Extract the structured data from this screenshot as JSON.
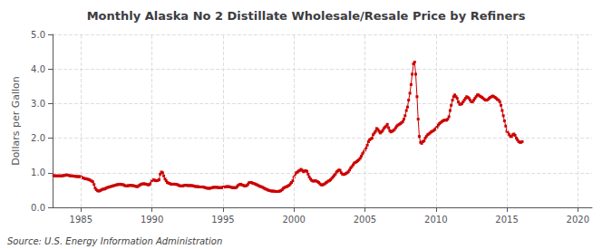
{
  "chart_data": {
    "type": "line",
    "title": "Monthly Alaska No 2 Distillate Wholesale/Resale Price by Refiners",
    "ylabel": "Dollars per Gallon",
    "annotation": "Source: U.S. Energy Information Administration",
    "color": "#cc0000",
    "marker": "square",
    "grid": true,
    "xlim": [
      1983,
      2021
    ],
    "ylim": [
      0.0,
      5.0
    ],
    "xticks": [
      1985,
      1990,
      1995,
      2000,
      2005,
      2010,
      2015,
      2020
    ],
    "yticks": [
      {
        "value": 0.0,
        "label": "0.0"
      },
      {
        "value": 1.0,
        "label": "1.0"
      },
      {
        "value": 2.0,
        "label": "2.0"
      },
      {
        "value": 3.0,
        "label": "3.0"
      },
      {
        "value": 4.0,
        "label": "4.0"
      },
      {
        "value": 5.0,
        "label": "5.0"
      }
    ],
    "x": [
      1983.08,
      1983.17,
      1983.25,
      1983.33,
      1983.42,
      1983.5,
      1983.58,
      1983.67,
      1983.75,
      1983.83,
      1983.92,
      1984.0,
      1984.08,
      1984.17,
      1984.25,
      1984.33,
      1984.42,
      1984.5,
      1984.58,
      1984.67,
      1984.75,
      1984.83,
      1984.92,
      1985.0,
      1985.08,
      1985.17,
      1985.25,
      1985.33,
      1985.42,
      1985.5,
      1985.58,
      1985.67,
      1985.75,
      1985.83,
      1985.92,
      1986.0,
      1986.08,
      1986.17,
      1986.25,
      1986.33,
      1986.42,
      1986.5,
      1986.58,
      1986.67,
      1986.75,
      1986.83,
      1986.92,
      1987.0,
      1987.08,
      1987.17,
      1987.25,
      1987.33,
      1987.42,
      1987.5,
      1987.58,
      1987.67,
      1987.75,
      1987.83,
      1987.92,
      1988.0,
      1988.08,
      1988.17,
      1988.25,
      1988.33,
      1988.42,
      1988.5,
      1988.58,
      1988.67,
      1988.75,
      1988.83,
      1988.92,
      1989.0,
      1989.08,
      1989.17,
      1989.25,
      1989.33,
      1989.42,
      1989.5,
      1989.58,
      1989.67,
      1989.75,
      1989.83,
      1989.92,
      1990.0,
      1990.08,
      1990.17,
      1990.25,
      1990.33,
      1990.42,
      1990.5,
      1990.58,
      1990.67,
      1990.75,
      1990.83,
      1990.92,
      1991.0,
      1991.08,
      1991.17,
      1991.25,
      1991.33,
      1991.42,
      1991.5,
      1991.58,
      1991.67,
      1991.75,
      1991.83,
      1991.92,
      1992.0,
      1992.08,
      1992.17,
      1992.25,
      1992.33,
      1992.42,
      1992.5,
      1992.58,
      1992.67,
      1992.75,
      1992.83,
      1992.92,
      1993.0,
      1993.08,
      1993.17,
      1993.25,
      1993.33,
      1993.42,
      1993.5,
      1993.58,
      1993.67,
      1993.75,
      1993.83,
      1993.92,
      1994.0,
      1994.08,
      1994.17,
      1994.25,
      1994.33,
      1994.42,
      1994.5,
      1994.58,
      1994.67,
      1994.75,
      1994.83,
      1994.92,
      1995.0,
      1995.08,
      1995.17,
      1995.25,
      1995.33,
      1995.42,
      1995.5,
      1995.58,
      1995.67,
      1995.75,
      1995.83,
      1995.92,
      1996.0,
      1996.08,
      1996.17,
      1996.25,
      1996.33,
      1996.42,
      1996.5,
      1996.58,
      1996.67,
      1996.75,
      1996.83,
      1996.92,
      1997.0,
      1997.08,
      1997.17,
      1997.25,
      1997.33,
      1997.42,
      1997.5,
      1997.58,
      1997.67,
      1997.75,
      1997.83,
      1997.92,
      1998.0,
      1998.08,
      1998.17,
      1998.25,
      1998.33,
      1998.42,
      1998.5,
      1998.58,
      1998.67,
      1998.75,
      1998.83,
      1998.92,
      1999.0,
      1999.08,
      1999.17,
      1999.25,
      1999.33,
      1999.42,
      1999.5,
      1999.58,
      1999.67,
      1999.75,
      1999.83,
      1999.92,
      2000.0,
      2000.08,
      2000.17,
      2000.25,
      2000.33,
      2000.42,
      2000.5,
      2000.58,
      2000.67,
      2000.75,
      2000.83,
      2000.92,
      2001.0,
      2001.08,
      2001.17,
      2001.25,
      2001.33,
      2001.42,
      2001.5,
      2001.58,
      2001.67,
      2001.75,
      2001.83,
      2001.92,
      2002.0,
      2002.08,
      2002.17,
      2002.25,
      2002.33,
      2002.42,
      2002.5,
      2002.58,
      2002.67,
      2002.75,
      2002.83,
      2002.92,
      2003.0,
      2003.08,
      2003.17,
      2003.25,
      2003.33,
      2003.42,
      2003.5,
      2003.58,
      2003.67,
      2003.75,
      2003.83,
      2003.92,
      2004.0,
      2004.08,
      2004.17,
      2004.25,
      2004.33,
      2004.42,
      2004.5,
      2004.58,
      2004.67,
      2004.75,
      2004.83,
      2004.92,
      2005.0,
      2005.08,
      2005.17,
      2005.25,
      2005.33,
      2005.42,
      2005.5,
      2005.58,
      2005.67,
      2005.75,
      2005.83,
      2005.92,
      2006.0,
      2006.08,
      2006.17,
      2006.25,
      2006.33,
      2006.42,
      2006.5,
      2006.58,
      2006.67,
      2006.75,
      2006.83,
      2006.92,
      2007.0,
      2007.08,
      2007.17,
      2007.25,
      2007.33,
      2007.42,
      2007.5,
      2007.58,
      2007.67,
      2007.75,
      2007.83,
      2007.92,
      2008.0,
      2008.08,
      2008.17,
      2008.25,
      2008.33,
      2008.42,
      2008.5,
      2008.58,
      2008.67,
      2008.75,
      2008.83,
      2008.92,
      2009.0,
      2009.08,
      2009.17,
      2009.25,
      2009.33,
      2009.42,
      2009.5,
      2009.58,
      2009.67,
      2009.75,
      2009.83,
      2009.92,
      2010.0,
      2010.08,
      2010.17,
      2010.25,
      2010.33,
      2010.42,
      2010.5,
      2010.58,
      2010.67,
      2010.75,
      2010.83,
      2010.92,
      2011.0,
      2011.08,
      2011.17,
      2011.25,
      2011.33,
      2011.42,
      2011.5,
      2011.58,
      2011.67,
      2011.75,
      2011.83,
      2011.92,
      2012.0,
      2012.08,
      2012.17,
      2012.25,
      2012.33,
      2012.42,
      2012.5,
      2012.58,
      2012.67,
      2012.75,
      2012.83,
      2012.92,
      2013.0,
      2013.08,
      2013.17,
      2013.25,
      2013.33,
      2013.42,
      2013.5,
      2013.58,
      2013.67,
      2013.75,
      2013.83,
      2013.92,
      2014.0,
      2014.08,
      2014.17,
      2014.25,
      2014.33,
      2014.42,
      2014.5,
      2014.58,
      2014.67,
      2014.75,
      2014.83,
      2014.92,
      2015.0,
      2015.08,
      2015.17,
      2015.25,
      2015.33,
      2015.42,
      2015.5,
      2015.58,
      2015.67,
      2015.75,
      2015.83,
      2015.92,
      2016.0,
      2016.08
    ],
    "values": [
      0.92,
      0.91,
      0.91,
      0.91,
      0.91,
      0.91,
      0.91,
      0.91,
      0.92,
      0.92,
      0.93,
      0.94,
      0.93,
      0.92,
      0.91,
      0.91,
      0.91,
      0.9,
      0.9,
      0.89,
      0.89,
      0.89,
      0.89,
      0.88,
      0.86,
      0.85,
      0.83,
      0.83,
      0.82,
      0.81,
      0.8,
      0.78,
      0.76,
      0.74,
      0.66,
      0.56,
      0.51,
      0.48,
      0.47,
      0.48,
      0.5,
      0.52,
      0.53,
      0.53,
      0.55,
      0.57,
      0.58,
      0.59,
      0.6,
      0.61,
      0.62,
      0.63,
      0.64,
      0.65,
      0.66,
      0.66,
      0.67,
      0.66,
      0.66,
      0.65,
      0.63,
      0.62,
      0.62,
      0.63,
      0.63,
      0.64,
      0.63,
      0.63,
      0.62,
      0.61,
      0.6,
      0.6,
      0.63,
      0.65,
      0.67,
      0.68,
      0.68,
      0.68,
      0.67,
      0.66,
      0.65,
      0.66,
      0.7,
      0.77,
      0.8,
      0.79,
      0.77,
      0.77,
      0.78,
      0.8,
      0.96,
      1.02,
      1.0,
      0.91,
      0.82,
      0.77,
      0.72,
      0.7,
      0.69,
      0.67,
      0.67,
      0.67,
      0.67,
      0.67,
      0.66,
      0.65,
      0.63,
      0.62,
      0.62,
      0.62,
      0.63,
      0.64,
      0.64,
      0.63,
      0.63,
      0.63,
      0.63,
      0.63,
      0.62,
      0.61,
      0.6,
      0.6,
      0.6,
      0.59,
      0.59,
      0.59,
      0.59,
      0.58,
      0.57,
      0.56,
      0.55,
      0.55,
      0.55,
      0.56,
      0.57,
      0.58,
      0.58,
      0.58,
      0.58,
      0.57,
      0.57,
      0.57,
      0.57,
      0.58,
      0.59,
      0.59,
      0.6,
      0.6,
      0.6,
      0.59,
      0.58,
      0.57,
      0.57,
      0.57,
      0.57,
      0.6,
      0.64,
      0.66,
      0.67,
      0.65,
      0.64,
      0.62,
      0.62,
      0.63,
      0.66,
      0.71,
      0.72,
      0.72,
      0.7,
      0.69,
      0.68,
      0.66,
      0.65,
      0.63,
      0.61,
      0.6,
      0.59,
      0.57,
      0.55,
      0.53,
      0.52,
      0.5,
      0.49,
      0.48,
      0.47,
      0.47,
      0.47,
      0.46,
      0.46,
      0.46,
      0.46,
      0.47,
      0.48,
      0.51,
      0.55,
      0.57,
      0.59,
      0.6,
      0.62,
      0.64,
      0.68,
      0.72,
      0.77,
      0.87,
      0.96,
      1.0,
      1.02,
      1.05,
      1.07,
      1.1,
      1.07,
      1.03,
      1.05,
      1.06,
      1.04,
      0.96,
      0.88,
      0.82,
      0.78,
      0.76,
      0.76,
      0.77,
      0.76,
      0.74,
      0.72,
      0.68,
      0.65,
      0.65,
      0.66,
      0.68,
      0.71,
      0.73,
      0.76,
      0.77,
      0.8,
      0.84,
      0.88,
      0.92,
      0.96,
      1.02,
      1.05,
      1.08,
      1.07,
      1.0,
      0.96,
      0.95,
      0.96,
      0.98,
      1.0,
      1.03,
      1.08,
      1.14,
      1.18,
      1.23,
      1.28,
      1.3,
      1.32,
      1.35,
      1.38,
      1.42,
      1.48,
      1.55,
      1.6,
      1.65,
      1.72,
      1.8,
      1.9,
      1.95,
      1.98,
      2.0,
      2.1,
      2.15,
      2.2,
      2.28,
      2.25,
      2.2,
      2.15,
      2.18,
      2.22,
      2.28,
      2.32,
      2.35,
      2.4,
      2.3,
      2.22,
      2.18,
      2.2,
      2.22,
      2.25,
      2.3,
      2.35,
      2.38,
      2.4,
      2.42,
      2.45,
      2.48,
      2.55,
      2.65,
      2.8,
      2.9,
      3.1,
      3.3,
      3.55,
      3.85,
      4.15,
      4.2,
      3.85,
      3.2,
      2.55,
      2.05,
      1.88,
      1.85,
      1.9,
      1.92,
      2.0,
      2.05,
      2.1,
      2.12,
      2.15,
      2.18,
      2.2,
      2.22,
      2.25,
      2.28,
      2.32,
      2.38,
      2.42,
      2.45,
      2.48,
      2.5,
      2.52,
      2.52,
      2.52,
      2.55,
      2.62,
      2.8,
      2.95,
      3.1,
      3.2,
      3.25,
      3.2,
      3.15,
      3.05,
      2.98,
      2.98,
      3.0,
      3.05,
      3.1,
      3.15,
      3.2,
      3.18,
      3.15,
      3.1,
      3.05,
      3.05,
      3.1,
      3.15,
      3.2,
      3.25,
      3.25,
      3.22,
      3.2,
      3.18,
      3.15,
      3.12,
      3.1,
      3.1,
      3.12,
      3.15,
      3.18,
      3.2,
      3.22,
      3.2,
      3.18,
      3.15,
      3.12,
      3.1,
      3.05,
      2.95,
      2.8,
      2.65,
      2.5,
      2.35,
      2.2,
      2.15,
      2.1,
      2.05,
      2.05,
      2.1,
      2.12,
      2.08,
      2.0,
      1.95,
      1.9,
      1.88,
      1.88,
      1.9
    ]
  }
}
